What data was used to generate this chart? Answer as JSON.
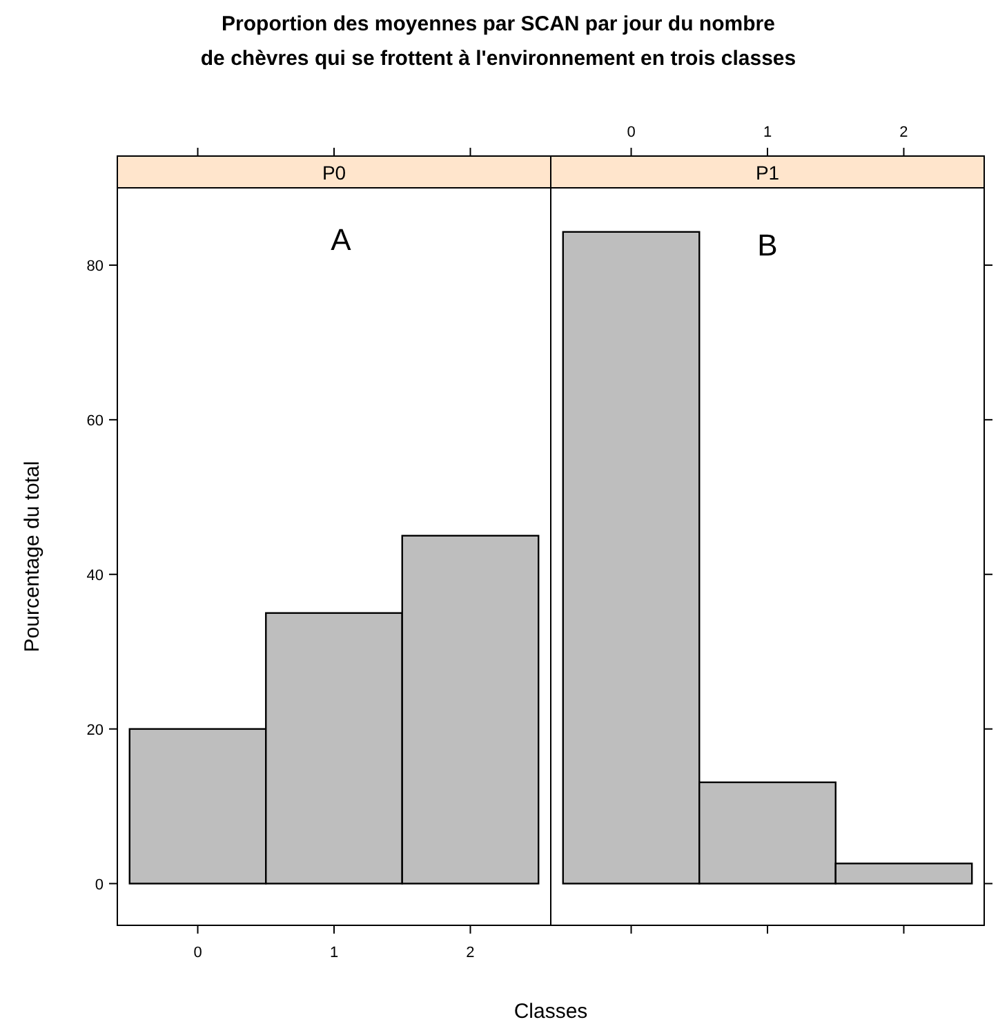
{
  "chart_data": [
    {
      "type": "histogram",
      "title": "Proportion des moyennes par SCAN par jour du nombre\nde chèvres qui se frottent à l'environnement en trois classes",
      "subtitle": "P0",
      "xlabel": "Classes",
      "ylabel": "Pourcentage du total",
      "bins": [
        -0.5,
        0.5,
        1.5,
        2.5
      ],
      "values": [
        20,
        35,
        45
      ],
      "color": "#bebebe",
      "xlim": [
        -0.59,
        2.59
      ],
      "xticks": [
        0,
        1,
        2
      ],
      "ylim": [
        -5.4,
        90
      ],
      "yticks": [
        0,
        20,
        40,
        60,
        80
      ],
      "annotations": [
        "A"
      ]
    },
    {
      "type": "histogram",
      "subtitle": "P1",
      "bins": [
        -0.5,
        0.5,
        1.5,
        2.5
      ],
      "values": [
        84.3,
        13.1,
        2.6
      ],
      "color": "#bebebe",
      "xlim": [
        -0.59,
        2.59
      ],
      "xticks": [
        0,
        1,
        2
      ],
      "ylim": [
        -5.4,
        90
      ],
      "yticks": [
        0,
        20,
        40,
        60,
        80
      ],
      "tick_labels": "x",
      "annotations": [
        "B"
      ]
    }
  ]
}
